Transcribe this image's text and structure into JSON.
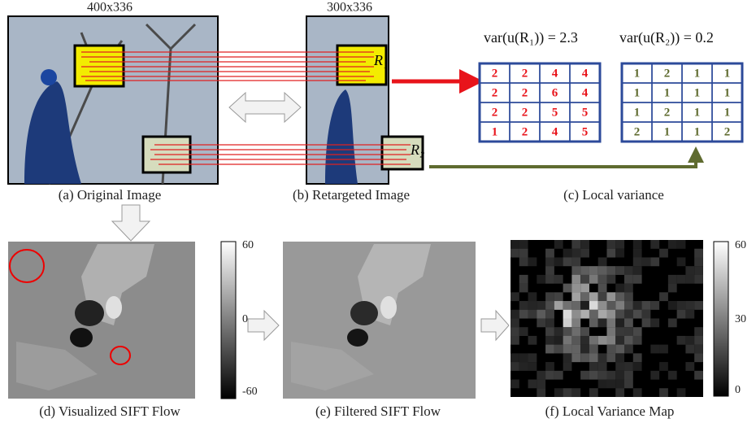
{
  "panel_a": {
    "size": "400x336",
    "caption": "(a) Original Image"
  },
  "panel_b": {
    "size": "300x336",
    "caption": "(b) Retargeted Image",
    "region_1": "R₁",
    "region_2": "R₂"
  },
  "panel_c": {
    "caption": "(c) Local variance",
    "formula_1": "var(u(R₁)) = 2.3",
    "formula_2": "var(u(R₂)) = 0.2",
    "grid_1": [
      [
        2,
        2,
        4,
        4
      ],
      [
        2,
        2,
        6,
        4
      ],
      [
        2,
        2,
        5,
        5
      ],
      [
        1,
        2,
        4,
        5
      ]
    ],
    "grid_2": [
      [
        1,
        2,
        1,
        1
      ],
      [
        1,
        1,
        1,
        1
      ],
      [
        1,
        2,
        1,
        1
      ],
      [
        2,
        1,
        1,
        2
      ]
    ]
  },
  "panel_d": {
    "caption": "(d) Visualized SIFT Flow",
    "colorbar": [
      "60",
      "0",
      "-60"
    ]
  },
  "panel_e": {
    "caption": "(e) Filtered SIFT Flow"
  },
  "panel_f": {
    "caption": "(f) Local Variance Map",
    "colorbar": [
      "60",
      "30",
      "0"
    ]
  }
}
